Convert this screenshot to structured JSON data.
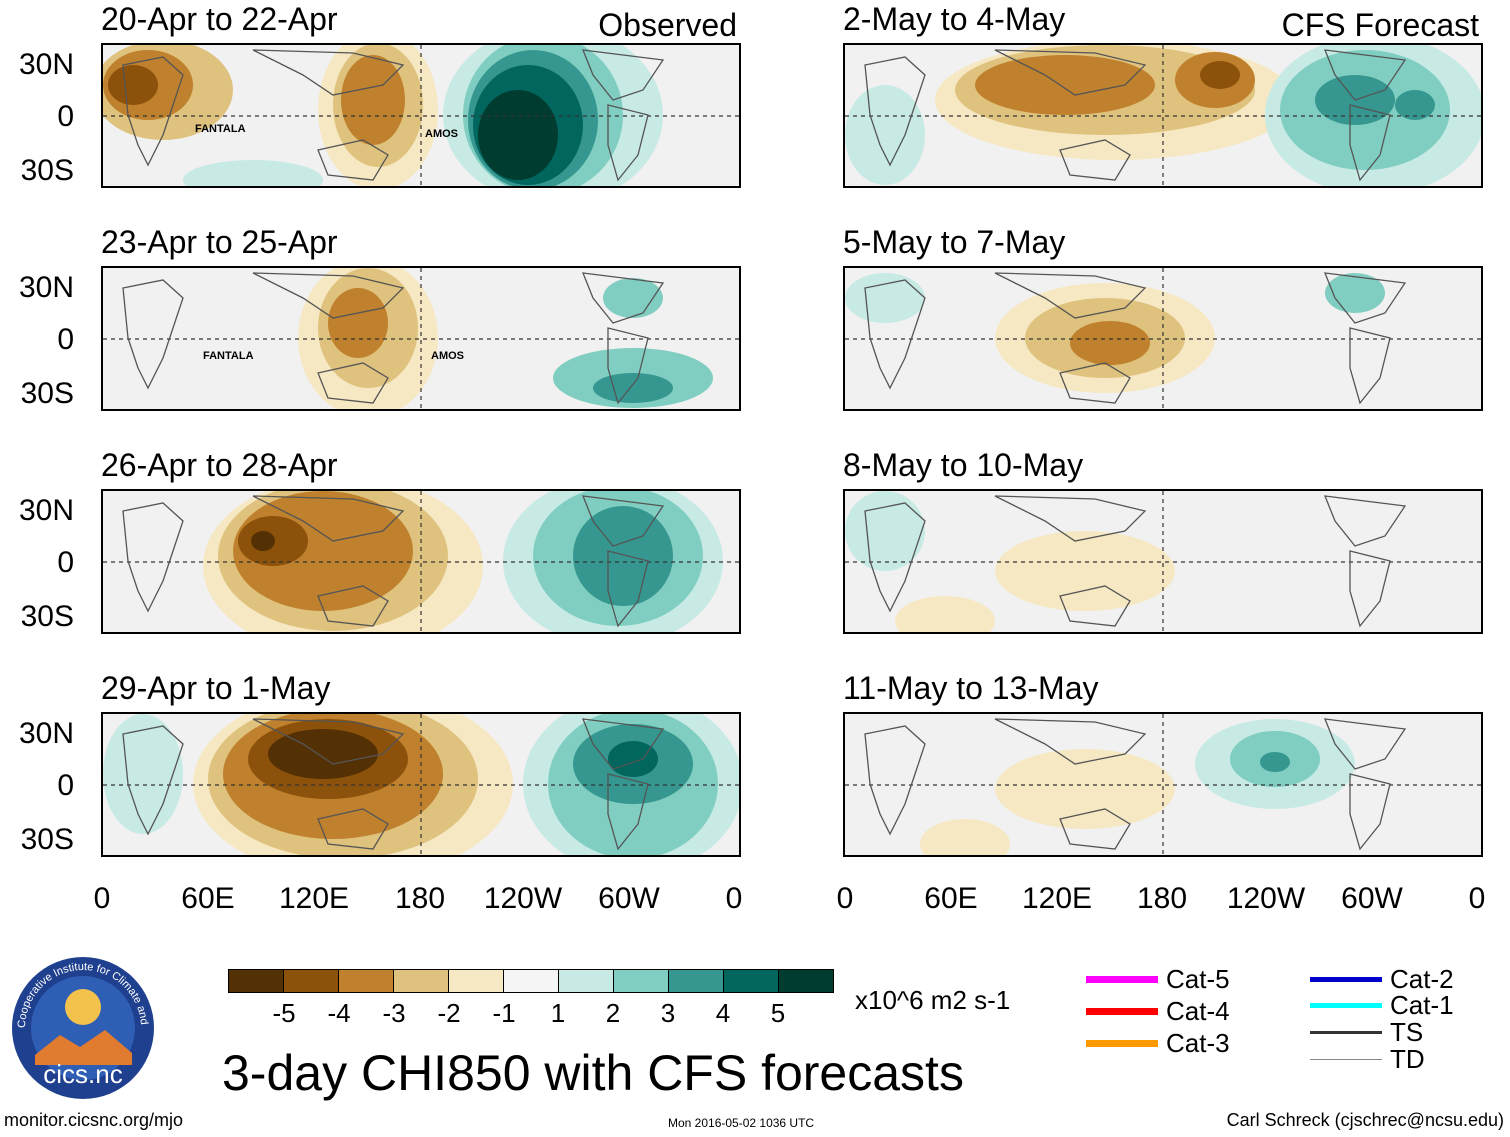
{
  "panels_left": [
    {
      "title": "20-Apr to 22-Apr",
      "tag": "Observed",
      "storms": [
        "FANTALA",
        "AMOS"
      ]
    },
    {
      "title": "23-Apr to 25-Apr",
      "tag": "",
      "storms": [
        "FANTALA",
        "AMOS"
      ]
    },
    {
      "title": "26-Apr to 28-Apr",
      "tag": "",
      "storms": []
    },
    {
      "title": "29-Apr to 1-May",
      "tag": "",
      "storms": []
    }
  ],
  "panels_right": [
    {
      "title": "2-May to 4-May",
      "tag": "CFS Forecast"
    },
    {
      "title": "5-May to 7-May",
      "tag": ""
    },
    {
      "title": "8-May to 10-May",
      "tag": ""
    },
    {
      "title": "11-May to 13-May",
      "tag": ""
    }
  ],
  "lat_labels": [
    "30N",
    "0",
    "30S"
  ],
  "lon_labels": [
    "0",
    "60E",
    "120E",
    "180",
    "120W",
    "60W",
    "0"
  ],
  "colorbar": {
    "colors": [
      "#543005",
      "#8c510a",
      "#bf812d",
      "#dfc27d",
      "#f6e8c3",
      "#f5f5f5",
      "#c7eae5",
      "#80cdc1",
      "#35978f",
      "#01665e",
      "#003c30"
    ],
    "ticks": [
      "-5",
      "-4",
      "-3",
      "-2",
      "-1",
      "1",
      "2",
      "3",
      "4",
      "5"
    ],
    "units": "x10^6 m2 s-1"
  },
  "title": "3-day CHI850 with CFS forecasts",
  "legend": [
    {
      "label": "Cat-5",
      "color": "#ff00ff"
    },
    {
      "label": "Cat-4",
      "color": "#ff0000"
    },
    {
      "label": "Cat-3",
      "color": "#ff9900"
    },
    {
      "label": "Cat-2",
      "color": "#0000cc"
    },
    {
      "label": "Cat-1",
      "color": "#00ffff"
    },
    {
      "label": "TS",
      "color": "#333333"
    },
    {
      "label": "TD",
      "color": "#888888"
    }
  ],
  "footer": {
    "url": "monitor.cicsnc.org/mjo",
    "timestamp": "Mon 2016-05-02 1036 UTC",
    "author": "Carl Schreck (cjschrec@ncsu.edu)"
  },
  "logo": {
    "text": "cics.nc",
    "ring_text": "Cooperative Institute for Climate and Satellites"
  }
}
